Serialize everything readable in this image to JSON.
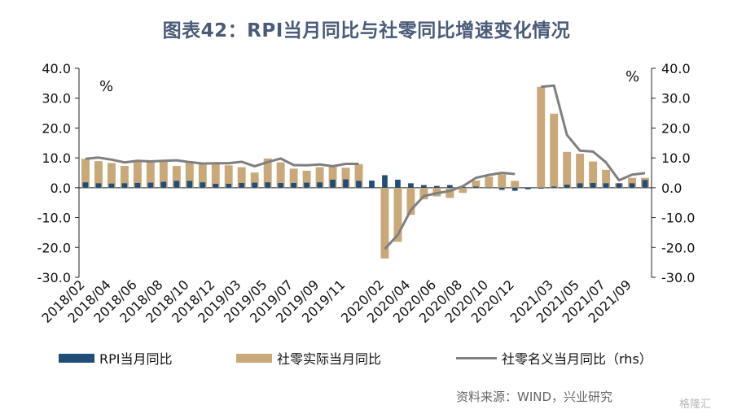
{
  "title": "图表42：RPI当月同比与社零同比增速变化情况",
  "source": "资料来源：WIND，兴业研究",
  "watermark": "格隆汇",
  "colors": {
    "rpi": "#1f4e79",
    "retail_real": "#c9a97a",
    "retail_nominal": "#7f7f7f",
    "axis": "#222222",
    "title": "#4a5a78"
  },
  "chart_data": {
    "type": "bar",
    "left_unit": "%",
    "right_unit": "%",
    "left_ticks": [
      "40.0",
      "30.0",
      "20.0",
      "10.0",
      "0.0",
      "-10.0",
      "-20.0",
      "-30.0"
    ],
    "right_ticks": [
      "40.0",
      "30.0",
      "20.0",
      "10.0",
      "0.0",
      "-10.0",
      "-20.0",
      "-30.0"
    ],
    "ylim": [
      -30,
      40
    ],
    "x_tick_labels": [
      "2018/02",
      "2018/04",
      "2018/06",
      "2018/08",
      "2018/10",
      "2018/12",
      "2019/03",
      "2019/05",
      "2019/07",
      "2019/09",
      "2019/11",
      "2020/02",
      "2020/04",
      "2020/06",
      "2020/08",
      "2020/10",
      "2020/12",
      "2021/03",
      "2021/05",
      "2021/07",
      "2021/09"
    ],
    "categories": [
      "2018/02",
      "2018/03",
      "2018/04",
      "2018/05",
      "2018/06",
      "2018/07",
      "2018/08",
      "2018/09",
      "2018/10",
      "2018/11",
      "2018/12",
      "2019/01",
      "2019/03",
      "2019/04",
      "2019/05",
      "2019/06",
      "2019/07",
      "2019/08",
      "2019/09",
      "2019/10",
      "2019/11",
      "2019/12",
      "2020/01",
      "2020/02",
      "2020/03",
      "2020/04",
      "2020/05",
      "2020/06",
      "2020/07",
      "2020/08",
      "2020/09",
      "2020/10",
      "2020/11",
      "2020/12",
      "2021/01",
      "2021/02",
      "2021/03",
      "2021/04",
      "2021/05",
      "2021/06",
      "2021/07",
      "2021/08",
      "2021/09",
      "2021/10"
    ],
    "series": [
      {
        "name": "RPI当月同比",
        "kind": "bar",
        "values": [
          1.8,
          1.5,
          1.4,
          1.5,
          1.6,
          1.7,
          2.0,
          2.3,
          2.3,
          1.8,
          1.3,
          1.3,
          1.6,
          1.7,
          1.8,
          1.6,
          1.6,
          1.7,
          1.8,
          2.7,
          2.8,
          2.3,
          2.4,
          4.2,
          2.7,
          1.5,
          0.9,
          0.6,
          0.9,
          0.3,
          0.4,
          0.1,
          -0.7,
          -1.0,
          -0.5,
          -0.3,
          0.4,
          1.0,
          1.5,
          1.6,
          1.5,
          1.5,
          1.5,
          2.6
        ]
      },
      {
        "name": "社零实际当月同比",
        "kind": "bar",
        "values": [
          9.7,
          8.9,
          8.3,
          7.3,
          8.9,
          8.8,
          8.9,
          7.3,
          8.4,
          7.9,
          7.9,
          7.5,
          6.9,
          5.1,
          9.8,
          8.5,
          6.4,
          5.7,
          6.9,
          7.1,
          6.7,
          7.9,
          null,
          -23.7,
          -18.1,
          -9.1,
          -3.9,
          -2.9,
          -3.4,
          -1.7,
          2.4,
          3.7,
          4.5,
          2.3,
          null,
          33.8,
          24.8,
          12.0,
          11.4,
          8.8,
          6.0,
          1.5,
          3.3,
          3.3
        ]
      },
      {
        "name": "社零名义当月同比（rhs）",
        "kind": "line",
        "values": [
          9.7,
          10.1,
          9.4,
          8.5,
          9.0,
          8.8,
          9.0,
          9.2,
          8.6,
          8.1,
          8.2,
          8.2,
          8.7,
          7.2,
          8.6,
          9.8,
          7.6,
          7.5,
          7.8,
          7.2,
          8.0,
          8.0,
          null,
          -20.5,
          -15.8,
          -7.5,
          -2.8,
          -1.8,
          -1.1,
          0.5,
          3.3,
          4.3,
          5.0,
          4.6,
          null,
          33.8,
          34.2,
          17.7,
          12.4,
          12.1,
          8.5,
          2.5,
          4.4,
          4.9
        ]
      }
    ]
  }
}
